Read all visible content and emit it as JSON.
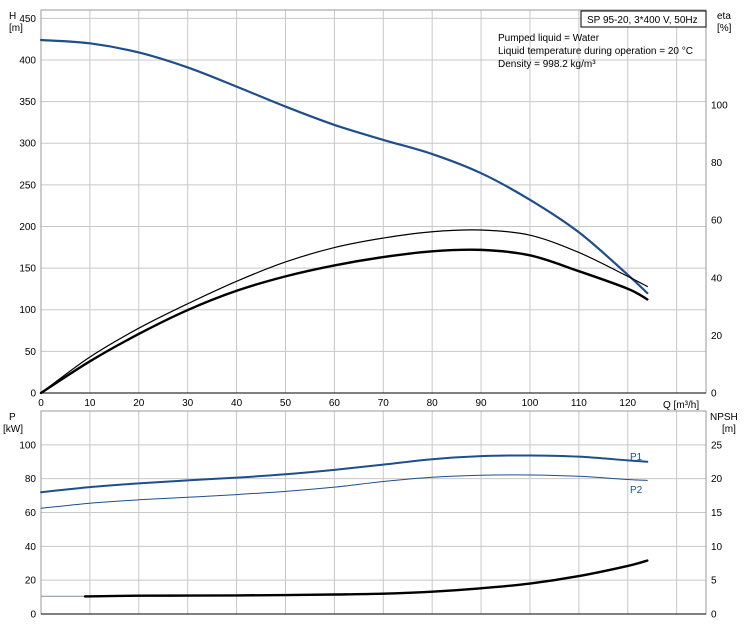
{
  "chart_data": [
    {
      "type": "line",
      "title": "SP 95-20, 3*400 V, 50Hz",
      "info": [
        "Pumped liquid = Water",
        "Liquid temperature during operation = 20 °C",
        "Density = 998.2 kg/m³"
      ],
      "x_axis": {
        "label": "Q [m³/h]",
        "range": [
          0,
          136
        ],
        "ticks": [
          0,
          10,
          20,
          30,
          40,
          50,
          60,
          70,
          80,
          90,
          100,
          110,
          120
        ]
      },
      "y_axis_left": {
        "label_top": "H",
        "label_bottom": "[m]",
        "range": [
          0,
          460
        ],
        "ticks": [
          0,
          50,
          100,
          150,
          200,
          250,
          300,
          350,
          400,
          450
        ]
      },
      "y_axis_right": {
        "label_top": "eta",
        "label_bottom": "[%]",
        "range": [
          0,
          133
        ],
        "ticks": [
          0,
          20,
          40,
          60,
          80,
          100
        ]
      },
      "grid": true,
      "series": [
        {
          "axis": "left",
          "color": "#1f4e8c",
          "width": 2.2,
          "points": [
            [
              0,
              424
            ],
            [
              10,
              420
            ],
            [
              20,
              409
            ],
            [
              30,
              391
            ],
            [
              40,
              368
            ],
            [
              50,
              344
            ],
            [
              60,
              322
            ],
            [
              70,
              304
            ],
            [
              80,
              287
            ],
            [
              90,
              264
            ],
            [
              100,
              232
            ],
            [
              110,
              193
            ],
            [
              120,
              142
            ],
            [
              124,
              120
            ]
          ]
        },
        {
          "axis": "right",
          "color": "#000000",
          "width": 1.2,
          "points": [
            [
              0,
              0
            ],
            [
              10,
              12.5
            ],
            [
              20,
              22.5
            ],
            [
              30,
              31
            ],
            [
              40,
              38.8
            ],
            [
              50,
              45.5
            ],
            [
              60,
              50.5
            ],
            [
              70,
              53.8
            ],
            [
              80,
              56
            ],
            [
              90,
              56.6
            ],
            [
              100,
              54.8
            ],
            [
              110,
              48.8
            ],
            [
              120,
              40.5
            ],
            [
              124,
              37
            ]
          ]
        },
        {
          "axis": "right",
          "color": "#000000",
          "width": 2.4,
          "points": [
            [
              0,
              0
            ],
            [
              10,
              11
            ],
            [
              20,
              20.5
            ],
            [
              30,
              28.8
            ],
            [
              40,
              35.5
            ],
            [
              50,
              40.5
            ],
            [
              60,
              44.3
            ],
            [
              70,
              47.2
            ],
            [
              80,
              49.2
            ],
            [
              90,
              49.7
            ],
            [
              100,
              47.8
            ],
            [
              110,
              42.3
            ],
            [
              120,
              36.2
            ],
            [
              124,
              32.5
            ]
          ]
        }
      ]
    },
    {
      "type": "line",
      "x_axis": {
        "range": [
          0,
          136
        ],
        "ticks": [
          0,
          10,
          20,
          30,
          40,
          50,
          60,
          70,
          80,
          90,
          100,
          110,
          120
        ]
      },
      "y_axis_left": {
        "label_top": "P",
        "label_bottom": "[kW]",
        "range": [
          0,
          120
        ],
        "ticks": [
          0,
          20,
          40,
          60,
          80,
          100
        ]
      },
      "y_axis_right": {
        "label_top": "NPSH",
        "label_bottom": "[m]",
        "range": [
          0,
          30
        ],
        "ticks": [
          0,
          5,
          10,
          15,
          20,
          25
        ]
      },
      "grid": true,
      "series": [
        {
          "name": "P1",
          "axis": "left",
          "color": "#1f4e8c",
          "width": 2,
          "points": [
            [
              0,
              72
            ],
            [
              10,
              75
            ],
            [
              20,
              77.2
            ],
            [
              30,
              79
            ],
            [
              40,
              80.6
            ],
            [
              50,
              82.6
            ],
            [
              60,
              85.2
            ],
            [
              70,
              88.3
            ],
            [
              80,
              91.5
            ],
            [
              90,
              93.3
            ],
            [
              100,
              93.7
            ],
            [
              110,
              93
            ],
            [
              120,
              90.8
            ],
            [
              124,
              90
            ]
          ]
        },
        {
          "name": "P2",
          "axis": "left",
          "color": "#1f4e8c",
          "width": 1,
          "points": [
            [
              0,
              62.5
            ],
            [
              10,
              65.5
            ],
            [
              20,
              67.5
            ],
            [
              30,
              69
            ],
            [
              40,
              70.6
            ],
            [
              50,
              72.5
            ],
            [
              60,
              75
            ],
            [
              70,
              78.3
            ],
            [
              80,
              80.8
            ],
            [
              90,
              82
            ],
            [
              100,
              82.2
            ],
            [
              110,
              81.4
            ],
            [
              120,
              79.5
            ],
            [
              124,
              79
            ]
          ]
        },
        {
          "axis": "left",
          "color": "#7f8fa6",
          "width": 1,
          "points": [
            [
              0,
              10.5
            ],
            [
              9,
              10.5
            ]
          ]
        },
        {
          "axis": "right",
          "color": "#000000",
          "width": 2.4,
          "points": [
            [
              9,
              2.6
            ],
            [
              20,
              2.7
            ],
            [
              30,
              2.72
            ],
            [
              40,
              2.75
            ],
            [
              50,
              2.8
            ],
            [
              60,
              2.88
            ],
            [
              70,
              3.0
            ],
            [
              80,
              3.3
            ],
            [
              90,
              3.8
            ],
            [
              100,
              4.5
            ],
            [
              110,
              5.6
            ],
            [
              120,
              7.1
            ],
            [
              124,
              7.9
            ]
          ]
        }
      ]
    }
  ]
}
